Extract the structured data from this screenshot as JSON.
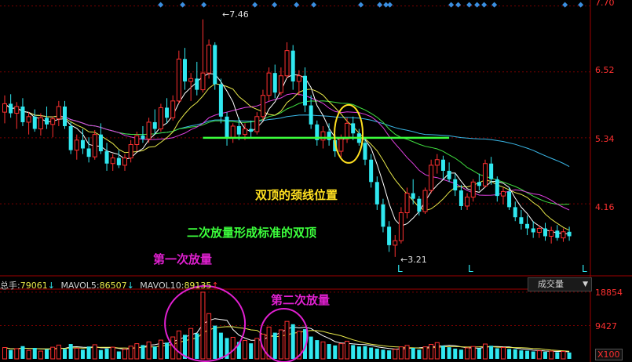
{
  "chart_data": {
    "type": "candlestick",
    "price_axis": {
      "ticks": [
        7.7,
        6.52,
        5.34,
        4.16
      ],
      "tick_labels": [
        "7.70",
        "6.52",
        "5.34",
        "4.16"
      ],
      "ylim": [
        2.9,
        7.75
      ]
    },
    "volume_axis": {
      "ticks": [
        18854,
        9427
      ],
      "tick_labels": [
        "18854",
        "9427"
      ],
      "unit_label": "X100",
      "ylim": [
        0,
        19500
      ]
    },
    "extremes": {
      "high_label": "7.46",
      "high_value": 7.46,
      "low_label": "3.21",
      "low_value": 3.21
    },
    "neckline_price": 5.34,
    "candles": [
      {
        "o": 5.8,
        "h": 6.1,
        "l": 5.6,
        "c": 5.95
      },
      {
        "o": 5.95,
        "h": 6.12,
        "l": 5.7,
        "c": 5.78
      },
      {
        "o": 5.78,
        "h": 5.98,
        "l": 5.5,
        "c": 5.9
      },
      {
        "o": 5.9,
        "h": 6.05,
        "l": 5.55,
        "c": 5.62
      },
      {
        "o": 5.62,
        "h": 5.8,
        "l": 5.4,
        "c": 5.72
      },
      {
        "o": 5.72,
        "h": 5.85,
        "l": 5.45,
        "c": 5.5
      },
      {
        "o": 5.5,
        "h": 5.78,
        "l": 5.38,
        "c": 5.7
      },
      {
        "o": 5.7,
        "h": 5.9,
        "l": 5.5,
        "c": 5.58
      },
      {
        "o": 5.58,
        "h": 5.72,
        "l": 5.35,
        "c": 5.68
      },
      {
        "o": 5.68,
        "h": 6.0,
        "l": 5.55,
        "c": 5.9
      },
      {
        "o": 5.9,
        "h": 6.0,
        "l": 5.5,
        "c": 5.55
      },
      {
        "o": 5.55,
        "h": 5.62,
        "l": 5.05,
        "c": 5.12
      },
      {
        "o": 5.12,
        "h": 5.4,
        "l": 4.95,
        "c": 5.3
      },
      {
        "o": 5.3,
        "h": 5.5,
        "l": 5.05,
        "c": 5.15
      },
      {
        "o": 5.15,
        "h": 5.35,
        "l": 4.9,
        "c": 5.0
      },
      {
        "o": 5.0,
        "h": 5.48,
        "l": 4.95,
        "c": 5.4
      },
      {
        "o": 5.4,
        "h": 5.6,
        "l": 5.05,
        "c": 5.1
      },
      {
        "o": 5.1,
        "h": 5.25,
        "l": 4.75,
        "c": 4.88
      },
      {
        "o": 4.88,
        "h": 5.05,
        "l": 4.75,
        "c": 4.98
      },
      {
        "o": 4.98,
        "h": 5.12,
        "l": 4.8,
        "c": 4.85
      },
      {
        "o": 4.85,
        "h": 5.05,
        "l": 4.75,
        "c": 4.98
      },
      {
        "o": 4.98,
        "h": 5.3,
        "l": 4.9,
        "c": 5.22
      },
      {
        "o": 5.22,
        "h": 5.45,
        "l": 5.1,
        "c": 5.38
      },
      {
        "o": 5.38,
        "h": 5.55,
        "l": 5.25,
        "c": 5.32
      },
      {
        "o": 5.32,
        "h": 5.7,
        "l": 5.25,
        "c": 5.62
      },
      {
        "o": 5.62,
        "h": 5.85,
        "l": 5.4,
        "c": 5.5
      },
      {
        "o": 5.5,
        "h": 5.95,
        "l": 5.45,
        "c": 5.88
      },
      {
        "o": 5.88,
        "h": 6.05,
        "l": 5.6,
        "c": 5.7
      },
      {
        "o": 5.7,
        "h": 6.1,
        "l": 5.65,
        "c": 6.0
      },
      {
        "o": 6.0,
        "h": 6.9,
        "l": 5.95,
        "c": 6.75
      },
      {
        "o": 6.75,
        "h": 6.95,
        "l": 6.2,
        "c": 6.35
      },
      {
        "o": 6.35,
        "h": 6.5,
        "l": 6.0,
        "c": 6.4
      },
      {
        "o": 6.4,
        "h": 6.7,
        "l": 6.1,
        "c": 6.2
      },
      {
        "o": 6.2,
        "h": 7.46,
        "l": 6.15,
        "c": 6.5
      },
      {
        "o": 6.5,
        "h": 7.1,
        "l": 6.4,
        "c": 7.0
      },
      {
        "o": 7.0,
        "h": 7.05,
        "l": 6.2,
        "c": 6.3
      },
      {
        "o": 6.3,
        "h": 6.4,
        "l": 5.6,
        "c": 5.72
      },
      {
        "o": 5.72,
        "h": 5.8,
        "l": 5.2,
        "c": 5.35
      },
      {
        "o": 5.35,
        "h": 5.6,
        "l": 5.25,
        "c": 5.55
      },
      {
        "o": 5.55,
        "h": 5.7,
        "l": 5.3,
        "c": 5.4
      },
      {
        "o": 5.4,
        "h": 5.6,
        "l": 5.3,
        "c": 5.5
      },
      {
        "o": 5.5,
        "h": 5.65,
        "l": 5.35,
        "c": 5.45
      },
      {
        "o": 5.45,
        "h": 5.8,
        "l": 5.4,
        "c": 5.72
      },
      {
        "o": 5.72,
        "h": 6.2,
        "l": 5.65,
        "c": 6.1
      },
      {
        "o": 6.1,
        "h": 6.6,
        "l": 6.0,
        "c": 6.5
      },
      {
        "o": 6.5,
        "h": 6.65,
        "l": 6.05,
        "c": 6.15
      },
      {
        "o": 6.15,
        "h": 6.6,
        "l": 6.1,
        "c": 6.45
      },
      {
        "o": 6.45,
        "h": 7.05,
        "l": 6.4,
        "c": 6.9
      },
      {
        "o": 6.9,
        "h": 7.0,
        "l": 6.2,
        "c": 6.35
      },
      {
        "o": 6.35,
        "h": 6.55,
        "l": 6.1,
        "c": 6.45
      },
      {
        "o": 6.45,
        "h": 6.6,
        "l": 5.8,
        "c": 5.92
      },
      {
        "o": 5.92,
        "h": 6.1,
        "l": 5.5,
        "c": 5.58
      },
      {
        "o": 5.58,
        "h": 5.65,
        "l": 5.2,
        "c": 5.3
      },
      {
        "o": 5.3,
        "h": 5.55,
        "l": 5.15,
        "c": 5.45
      },
      {
        "o": 5.45,
        "h": 5.6,
        "l": 5.2,
        "c": 5.3
      },
      {
        "o": 5.3,
        "h": 5.4,
        "l": 5.0,
        "c": 5.1
      },
      {
        "o": 5.1,
        "h": 5.4,
        "l": 5.0,
        "c": 5.32
      },
      {
        "o": 5.32,
        "h": 5.7,
        "l": 5.25,
        "c": 5.6
      },
      {
        "o": 5.6,
        "h": 5.72,
        "l": 5.3,
        "c": 5.42
      },
      {
        "o": 5.42,
        "h": 5.5,
        "l": 5.2,
        "c": 5.25
      },
      {
        "o": 5.25,
        "h": 5.35,
        "l": 4.85,
        "c": 4.95
      },
      {
        "o": 4.95,
        "h": 5.05,
        "l": 4.45,
        "c": 4.55
      },
      {
        "o": 4.55,
        "h": 4.65,
        "l": 4.05,
        "c": 4.15
      },
      {
        "o": 4.15,
        "h": 4.25,
        "l": 3.65,
        "c": 3.75
      },
      {
        "o": 3.75,
        "h": 3.85,
        "l": 3.3,
        "c": 3.42
      },
      {
        "o": 3.42,
        "h": 3.6,
        "l": 3.21,
        "c": 3.5
      },
      {
        "o": 3.5,
        "h": 4.1,
        "l": 3.45,
        "c": 4.0
      },
      {
        "o": 4.0,
        "h": 4.45,
        "l": 3.9,
        "c": 4.35
      },
      {
        "o": 4.35,
        "h": 4.6,
        "l": 4.15,
        "c": 4.25
      },
      {
        "o": 4.25,
        "h": 4.3,
        "l": 3.95,
        "c": 4.02
      },
      {
        "o": 4.02,
        "h": 4.45,
        "l": 3.98,
        "c": 4.4
      },
      {
        "o": 4.4,
        "h": 4.95,
        "l": 4.35,
        "c": 4.85
      },
      {
        "o": 4.85,
        "h": 5.05,
        "l": 4.7,
        "c": 4.95
      },
      {
        "o": 4.95,
        "h": 5.02,
        "l": 4.6,
        "c": 4.75
      },
      {
        "o": 4.75,
        "h": 4.9,
        "l": 4.55,
        "c": 4.6
      },
      {
        "o": 4.6,
        "h": 4.7,
        "l": 4.3,
        "c": 4.4
      },
      {
        "o": 4.4,
        "h": 4.5,
        "l": 4.05,
        "c": 4.12
      },
      {
        "o": 4.12,
        "h": 4.35,
        "l": 4.05,
        "c": 4.28
      },
      {
        "o": 4.28,
        "h": 4.6,
        "l": 4.2,
        "c": 4.55
      },
      {
        "o": 4.55,
        "h": 4.7,
        "l": 4.4,
        "c": 4.48
      },
      {
        "o": 4.48,
        "h": 4.95,
        "l": 4.45,
        "c": 4.88
      },
      {
        "o": 4.88,
        "h": 5.0,
        "l": 4.5,
        "c": 4.6
      },
      {
        "o": 4.6,
        "h": 4.65,
        "l": 4.2,
        "c": 4.3
      },
      {
        "o": 4.3,
        "h": 4.45,
        "l": 4.15,
        "c": 4.38
      },
      {
        "o": 4.38,
        "h": 4.45,
        "l": 4.05,
        "c": 4.1
      },
      {
        "o": 4.1,
        "h": 4.2,
        "l": 3.85,
        "c": 3.92
      },
      {
        "o": 3.92,
        "h": 4.05,
        "l": 3.7,
        "c": 3.8
      },
      {
        "o": 3.8,
        "h": 3.95,
        "l": 3.6,
        "c": 3.72
      },
      {
        "o": 3.72,
        "h": 3.85,
        "l": 3.55,
        "c": 3.65
      },
      {
        "o": 3.65,
        "h": 3.78,
        "l": 3.55,
        "c": 3.72
      },
      {
        "o": 3.72,
        "h": 3.82,
        "l": 3.5,
        "c": 3.58
      },
      {
        "o": 3.58,
        "h": 3.75,
        "l": 3.45,
        "c": 3.68
      },
      {
        "o": 3.68,
        "h": 3.78,
        "l": 3.5,
        "c": 3.55
      },
      {
        "o": 3.55,
        "h": 3.72,
        "l": 3.48,
        "c": 3.66
      },
      {
        "o": 3.66,
        "h": 3.75,
        "l": 3.5,
        "c": 3.58
      }
    ],
    "volume": [
      3200,
      2500,
      2900,
      3600,
      2400,
      3100,
      2200,
      2700,
      3300,
      3900,
      2800,
      4200,
      3000,
      2600,
      3500,
      4000,
      2500,
      2900,
      3300,
      2100,
      2700,
      3600,
      4300,
      3900,
      4800,
      3500,
      5300,
      4600,
      6200,
      7900,
      6800,
      8600,
      7200,
      18854,
      12800,
      9400,
      7400,
      5900,
      6100,
      4800,
      5200,
      4400,
      5800,
      7000,
      9000,
      7400,
      8200,
      10600,
      9800,
      7800,
      8400,
      6300,
      5300,
      4800,
      4200,
      3800,
      4300,
      5000,
      3900,
      3500,
      3600,
      3200,
      2900,
      2600,
      2400,
      2700,
      3400,
      3800,
      3100,
      2600,
      3400,
      4100,
      4600,
      3700,
      3300,
      2900,
      2600,
      3100,
      3500,
      3000,
      4200,
      3700,
      3000,
      3200,
      2800,
      2700,
      2400,
      2300,
      2100,
      2300,
      2000,
      2200,
      1900,
      2100,
      1800
    ],
    "ma_price_colors": {
      "ma5": "#ffffff",
      "ma10": "#e8e84a",
      "ma20": "#e040e0",
      "ma30": "#40e040",
      "ma60": "#3ab8e8"
    },
    "volume_info": {
      "total_label": "总手:",
      "total_value": "79061",
      "mavol5_label": "MAVOL5:",
      "mavol5_value": "86507",
      "mavol10_label": "MAVOL10:",
      "mavol10_value": "89135"
    },
    "l_markers": [
      "L",
      "L",
      "L"
    ],
    "annotations": {
      "neckline": "双顶的颈线位置",
      "double_top": "二次放量形成标准的双顶",
      "first_volume": "第一次放量",
      "second_volume": "第二次放量"
    },
    "volume_indicator_selector": "成交量",
    "colors": {
      "up": "#ff3030",
      "down": "#30e8f0",
      "neckline": "#3cff3c",
      "ellipse": "#ffe020",
      "circle": "#e020d0",
      "grid": "#7a0000"
    }
  }
}
